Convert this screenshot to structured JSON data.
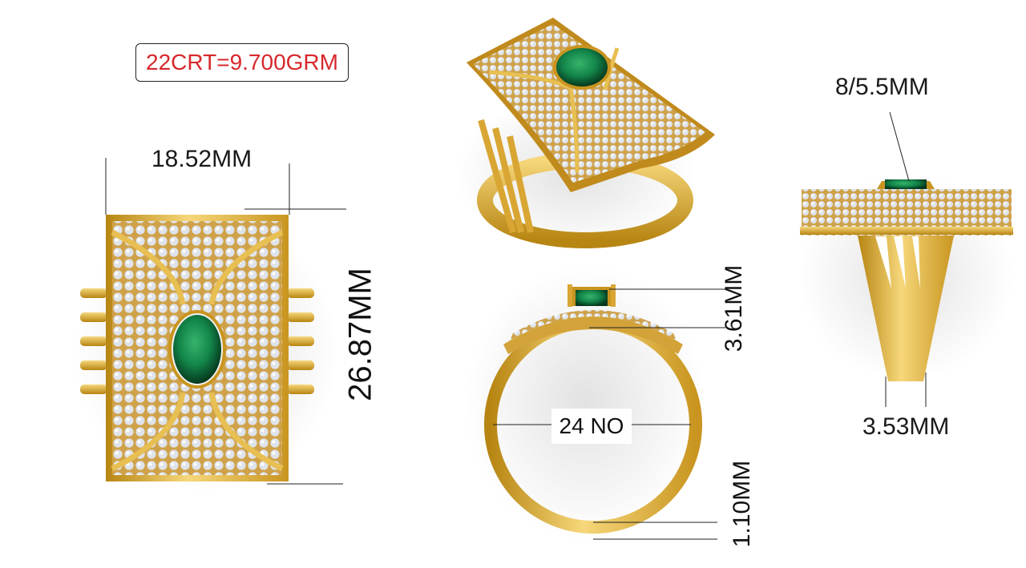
{
  "weight_label": "22CRT=9.700GRM",
  "dimensions": {
    "width": "18.52MM",
    "length": "26.87MM",
    "stone": "8/5.5MM",
    "top_height": "3.61MM",
    "ring_size": "24 NO",
    "band_thickness": "1.10MM",
    "shank_width": "3.53MM"
  },
  "colors": {
    "gold": "#e2b23a",
    "gold_dark": "#b78512",
    "gold_light": "#f6d77a",
    "diamond": "#d9dde6",
    "emerald": "#13854a",
    "weight_text": "#d7282d"
  },
  "views": {
    "top_view": "front",
    "perspective_view": "3/4",
    "side_view": "front elevation",
    "profile_view": "side"
  }
}
